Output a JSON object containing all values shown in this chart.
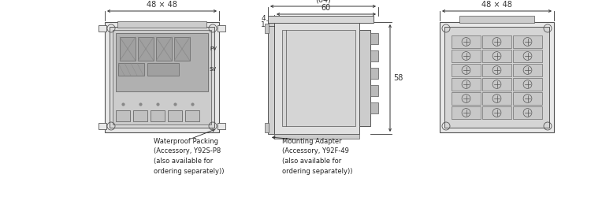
{
  "bg_color": "#ffffff",
  "line_color": "#555555",
  "dim_color": "#333333",
  "text_color": "#222222",
  "fill_bezel": "#e8e8e8",
  "fill_body": "#d8d8d8",
  "fill_face": "#c8c8c8",
  "fill_display": "#b8b8b8",
  "fill_side": "#d5d5d5",
  "fill_rear": "#e0e0e0",
  "fill_terminal": "#c0c0c0",
  "front_label": "48 × 48",
  "rear_label": "48 × 48",
  "dim64_label": "(64)",
  "dim60_label": "60",
  "dim4_label": "4",
  "dim1_label": "1",
  "dim58_label": "58",
  "wp_text": "Waterproof Packing\n(Accessory, Y92S-P8\n(also available for\nordering separately))",
  "ma_text": "Mounting Adapter\n(Accessory, Y92F-49\n(also available for\nordering separately))"
}
